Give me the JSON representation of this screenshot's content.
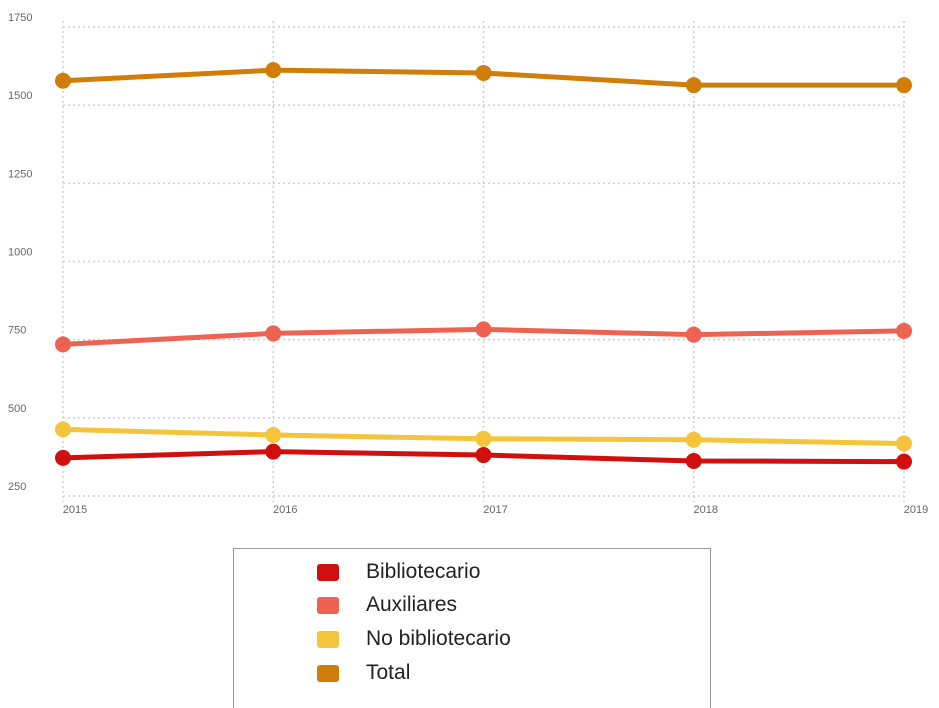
{
  "chart_data": {
    "type": "line",
    "x": [
      "2015",
      "2016",
      "2017",
      "2018",
      "2019"
    ],
    "y_ticks": [
      "250",
      "500",
      "750",
      "1000",
      "1250",
      "1500",
      "1750"
    ],
    "ylim": [
      250,
      1750
    ],
    "grid": true,
    "legend_position": "bottom",
    "series": [
      {
        "name": "Bibliotecario",
        "color": "#d20f0f",
        "values": [
          372,
          392,
          381,
          362,
          360
        ]
      },
      {
        "name": "Auxiliares",
        "color": "#ee6252",
        "values": [
          735,
          770,
          783,
          766,
          778
        ]
      },
      {
        "name": "No bibliotecario",
        "color": "#f3c43c",
        "values": [
          463,
          445,
          433,
          430,
          418
        ]
      },
      {
        "name": "Total",
        "color": "#d17d0a",
        "values": [
          1578,
          1612,
          1603,
          1564,
          1564
        ]
      }
    ]
  }
}
